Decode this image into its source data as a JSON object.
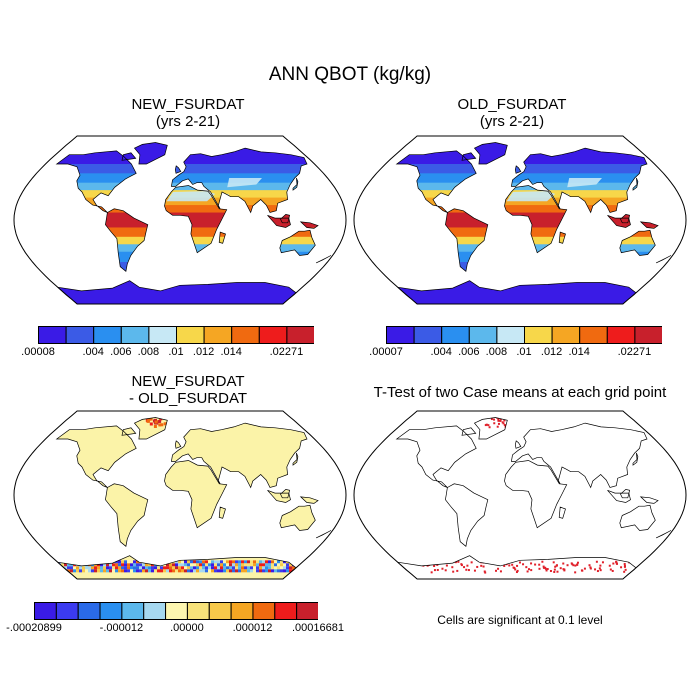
{
  "title": "ANN QBOT (kg/kg)",
  "panels": [
    {
      "id": "new",
      "title_lines": [
        "NEW_FSURDAT",
        "(yrs 2-21)"
      ]
    },
    {
      "id": "old",
      "title_lines": [
        "OLD_FSURDAT",
        "(yrs 2-21)"
      ]
    },
    {
      "id": "diff",
      "title_lines": [
        "NEW_FSURDAT",
        "- OLD_FSURDAT"
      ]
    },
    {
      "id": "ttest",
      "title_lines": [
        "T-Test of two Case means at each grid point"
      ]
    }
  ],
  "colorbars": {
    "new": {
      "colors": [
        "#3a1be6",
        "#3b5be6",
        "#2a8ff0",
        "#5cb8ec",
        "#c7e8f5",
        "#f7d74a",
        "#f5a623",
        "#f06a10",
        "#ee1c1c",
        "#c8202c"
      ],
      "labels": [
        ".00008",
        ".004",
        ".006",
        ".008",
        ".01",
        ".012",
        ".014",
        ".02271"
      ],
      "label_boundaries": [
        0,
        2,
        3,
        4,
        5,
        6,
        7,
        9
      ]
    },
    "old": {
      "colors": [
        "#3a1be6",
        "#3b5be6",
        "#2a8ff0",
        "#5cb8ec",
        "#c7e8f5",
        "#f7d74a",
        "#f5a623",
        "#f06a10",
        "#ee1c1c",
        "#c8202c"
      ],
      "labels": [
        ".00007",
        ".004",
        ".006",
        ".008",
        ".01",
        ".012",
        ".014",
        ".02271"
      ],
      "label_boundaries": [
        0,
        2,
        3,
        4,
        5,
        6,
        7,
        9
      ]
    },
    "diff": {
      "colors": [
        "#3a1be6",
        "#3b3bf0",
        "#2a6ae8",
        "#2a8ff0",
        "#5cb8ec",
        "#a6d8f0",
        "#fdf6b0",
        "#f7e27a",
        "#f7c94a",
        "#f5a623",
        "#f06a10",
        "#ee1c1c",
        "#c8202c"
      ],
      "labels": [
        "-.00020899",
        "-.000012",
        ".00000",
        ".000012",
        ".00016681"
      ],
      "label_boundaries": [
        0,
        4,
        7,
        10,
        13
      ]
    }
  },
  "note": "Cells are significant at 0.1 level",
  "colors": {
    "ocean": "#ffffff",
    "diff_land": "#fbf3a8",
    "significant": "#e0202a"
  }
}
